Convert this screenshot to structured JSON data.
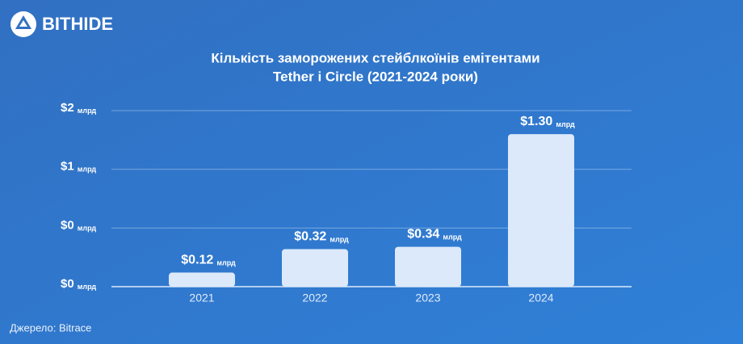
{
  "logo": "BITHIDE",
  "source": "Джерело: Bitrace",
  "chart_data": {
    "type": "bar",
    "title": [
      "Кількість заморожених стейблкоїнів емітентами",
      "Tether і Circle (2021-2024 роки)"
    ],
    "categories": [
      "2021",
      "2022",
      "2023",
      "2024"
    ],
    "values": [
      0.12,
      0.32,
      0.34,
      1.3
    ],
    "value_labels": [
      "$0.12",
      "$0.32",
      "$0.34",
      "$1.30"
    ],
    "unit": "млрд",
    "color": "#dbe9fb",
    "ylim": [
      0,
      1.5
    ],
    "yticks": [
      {
        "value": 0,
        "label": "$0"
      },
      {
        "value": 0.5,
        "label": "$0"
      },
      {
        "value": 1,
        "label": "$1"
      },
      {
        "value": 1.5,
        "label": "$2"
      }
    ],
    "grid": true
  }
}
